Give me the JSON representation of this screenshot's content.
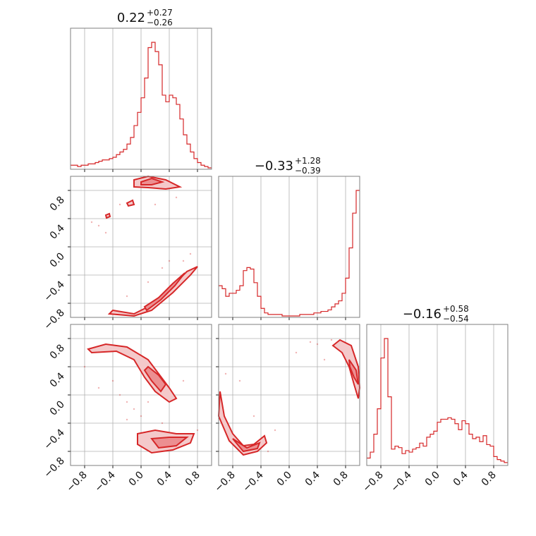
{
  "chart_data": {
    "type": "scatter",
    "subtype": "corner-plot",
    "accent_color": "#d62728",
    "fill_light": "#f4c9ca",
    "fill_mid": "#ec8f91",
    "params": [
      "",
      "",
      ""
    ],
    "range": [
      -1.0,
      1.0
    ],
    "ticks": [
      -0.8,
      -0.4,
      0.0,
      0.4,
      0.8
    ],
    "tick_labels": [
      "−0.8",
      "−0.4",
      "0.0",
      "0.4",
      "0.8"
    ],
    "grid": true,
    "titles": [
      {
        "median": "0.22",
        "plus": "+0.27",
        "minus": "−0.26"
      },
      {
        "median": "−0.33",
        "plus": "+1.28",
        "minus": "−0.39"
      },
      {
        "median": "−0.16",
        "plus": "+0.58",
        "minus": "−0.54"
      }
    ],
    "histograms": [
      {
        "param": 0,
        "bins": [
          -1.0,
          -0.95,
          -0.9,
          -0.85,
          -0.8,
          -0.75,
          -0.7,
          -0.65,
          -0.6,
          -0.55,
          -0.5,
          -0.45,
          -0.4,
          -0.35,
          -0.3,
          -0.25,
          -0.2,
          -0.15,
          -0.1,
          -0.05,
          0.0,
          0.05,
          0.1,
          0.15,
          0.2,
          0.25,
          0.3,
          0.35,
          0.4,
          0.45,
          0.5,
          0.55,
          0.6,
          0.65,
          0.7,
          0.75,
          0.8,
          0.85,
          0.9,
          0.95,
          1.0
        ],
        "counts": [
          0.02,
          0.02,
          0.01,
          0.02,
          0.02,
          0.03,
          0.03,
          0.04,
          0.05,
          0.06,
          0.06,
          0.07,
          0.08,
          0.1,
          0.12,
          0.14,
          0.18,
          0.23,
          0.32,
          0.42,
          0.53,
          0.68,
          0.91,
          0.95,
          0.88,
          0.78,
          0.55,
          0.5,
          0.55,
          0.53,
          0.48,
          0.37,
          0.25,
          0.18,
          0.12,
          0.07,
          0.04,
          0.02,
          0.01,
          0.0
        ]
      },
      {
        "param": 1,
        "bins": [
          -1.0,
          -0.95,
          -0.9,
          -0.85,
          -0.8,
          -0.75,
          -0.7,
          -0.65,
          -0.6,
          -0.55,
          -0.5,
          -0.45,
          -0.4,
          -0.35,
          -0.3,
          -0.25,
          -0.2,
          -0.15,
          -0.1,
          -0.05,
          0.0,
          0.05,
          0.1,
          0.15,
          0.2,
          0.25,
          0.3,
          0.35,
          0.4,
          0.45,
          0.5,
          0.55,
          0.6,
          0.65,
          0.7,
          0.75,
          0.8,
          0.85,
          0.9,
          0.95,
          1.0
        ],
        "counts": [
          0.2,
          0.18,
          0.13,
          0.15,
          0.15,
          0.17,
          0.2,
          0.3,
          0.32,
          0.31,
          0.22,
          0.13,
          0.05,
          0.02,
          0.01,
          0.01,
          0.01,
          0.01,
          0.0,
          0.0,
          0.0,
          0.0,
          0.0,
          0.01,
          0.01,
          0.01,
          0.01,
          0.02,
          0.02,
          0.03,
          0.03,
          0.04,
          0.06,
          0.08,
          0.1,
          0.15,
          0.25,
          0.45,
          0.68,
          0.83
        ]
      },
      {
        "param": 2,
        "bins": [
          -1.0,
          -0.95,
          -0.9,
          -0.85,
          -0.8,
          -0.75,
          -0.7,
          -0.65,
          -0.6,
          -0.55,
          -0.5,
          -0.45,
          -0.4,
          -0.35,
          -0.3,
          -0.25,
          -0.2,
          -0.15,
          -0.1,
          -0.05,
          0.0,
          0.05,
          0.1,
          0.15,
          0.2,
          0.25,
          0.3,
          0.35,
          0.4,
          0.45,
          0.5,
          0.55,
          0.6,
          0.65,
          0.7,
          0.75,
          0.8,
          0.85,
          0.9,
          0.95,
          1.0
        ],
        "counts": [
          0.04,
          0.08,
          0.2,
          0.37,
          0.71,
          0.84,
          0.45,
          0.1,
          0.12,
          0.11,
          0.07,
          0.09,
          0.08,
          0.1,
          0.11,
          0.14,
          0.12,
          0.18,
          0.2,
          0.22,
          0.28,
          0.3,
          0.3,
          0.31,
          0.3,
          0.27,
          0.23,
          0.29,
          0.27,
          0.2,
          0.17,
          0.18,
          0.15,
          0.19,
          0.13,
          0.12,
          0.05,
          0.03,
          0.02,
          0.01
        ]
      }
    ],
    "contours_2d": [
      {
        "x_param": 0,
        "y_param": 1,
        "regions": [
          {
            "level": "outer",
            "points": [
              [
                -0.1,
                0.95
              ],
              [
                0.1,
                1.0
              ],
              [
                0.35,
                0.95
              ],
              [
                0.55,
                0.85
              ],
              [
                0.35,
                0.82
              ],
              [
                0.1,
                0.84
              ],
              [
                -0.1,
                0.85
              ]
            ]
          },
          {
            "level": "inner",
            "points": [
              [
                0.0,
                0.92
              ],
              [
                0.15,
                0.97
              ],
              [
                0.3,
                0.92
              ],
              [
                0.15,
                0.88
              ],
              [
                0.0,
                0.88
              ]
            ]
          },
          {
            "level": "outer",
            "points": [
              [
                -0.4,
                -0.9
              ],
              [
                -0.1,
                -0.95
              ],
              [
                0.2,
                -0.8
              ],
              [
                0.45,
                -0.55
              ],
              [
                0.65,
                -0.35
              ],
              [
                0.8,
                -0.28
              ],
              [
                0.7,
                -0.4
              ],
              [
                0.45,
                -0.65
              ],
              [
                0.15,
                -0.9
              ],
              [
                -0.1,
                -0.98
              ],
              [
                -0.45,
                -0.95
              ]
            ]
          },
          {
            "level": "inner",
            "points": [
              [
                0.05,
                -0.85
              ],
              [
                0.25,
                -0.72
              ],
              [
                0.45,
                -0.52
              ],
              [
                0.62,
                -0.37
              ],
              [
                0.48,
                -0.55
              ],
              [
                0.28,
                -0.75
              ],
              [
                0.08,
                -0.9
              ]
            ]
          },
          {
            "level": "outer",
            "points": [
              [
                -0.5,
                0.45
              ],
              [
                -0.45,
                0.47
              ],
              [
                -0.44,
                0.43
              ],
              [
                -0.49,
                0.41
              ]
            ]
          },
          {
            "level": "outer",
            "points": [
              [
                -0.2,
                0.62
              ],
              [
                -0.12,
                0.66
              ],
              [
                -0.1,
                0.6
              ],
              [
                -0.18,
                0.58
              ]
            ]
          }
        ],
        "scatter": [
          [
            -0.6,
            0.3
          ],
          [
            -0.7,
            0.35
          ],
          [
            -0.3,
            0.6
          ],
          [
            0.5,
            0.7
          ],
          [
            0.6,
            -0.2
          ],
          [
            0.3,
            -0.3
          ],
          [
            -0.2,
            -0.7
          ],
          [
            0.7,
            -0.1
          ],
          [
            0.2,
            0.6
          ],
          [
            -0.5,
            0.2
          ],
          [
            0.1,
            -0.5
          ],
          [
            0.4,
            -0.2
          ]
        ]
      },
      {
        "x_param": 0,
        "y_param": 2,
        "regions": [
          {
            "level": "outer",
            "points": [
              [
                -0.75,
                0.65
              ],
              [
                -0.5,
                0.72
              ],
              [
                -0.2,
                0.68
              ],
              [
                0.1,
                0.5
              ],
              [
                0.25,
                0.3
              ],
              [
                0.4,
                0.1
              ],
              [
                0.5,
                -0.05
              ],
              [
                0.4,
                -0.1
              ],
              [
                0.2,
                0.05
              ],
              [
                0.05,
                0.25
              ],
              [
                -0.1,
                0.5
              ],
              [
                -0.35,
                0.62
              ],
              [
                -0.7,
                0.6
              ]
            ]
          },
          {
            "level": "inner",
            "points": [
              [
                0.1,
                0.4
              ],
              [
                0.25,
                0.28
              ],
              [
                0.35,
                0.15
              ],
              [
                0.28,
                0.05
              ],
              [
                0.15,
                0.2
              ],
              [
                0.05,
                0.35
              ]
            ]
          },
          {
            "level": "outer",
            "points": [
              [
                -0.05,
                -0.55
              ],
              [
                0.2,
                -0.5
              ],
              [
                0.5,
                -0.55
              ],
              [
                0.75,
                -0.55
              ],
              [
                0.7,
                -0.68
              ],
              [
                0.45,
                -0.78
              ],
              [
                0.15,
                -0.82
              ],
              [
                -0.05,
                -0.7
              ]
            ]
          },
          {
            "level": "inner",
            "points": [
              [
                0.15,
                -0.62
              ],
              [
                0.4,
                -0.6
              ],
              [
                0.65,
                -0.6
              ],
              [
                0.5,
                -0.72
              ],
              [
                0.25,
                -0.75
              ]
            ]
          }
        ],
        "scatter": [
          [
            -0.3,
            0.0
          ],
          [
            -0.2,
            -0.1
          ],
          [
            -0.1,
            -0.2
          ],
          [
            -0.2,
            -0.35
          ],
          [
            0.0,
            -0.3
          ],
          [
            0.1,
            -0.1
          ],
          [
            -0.4,
            0.2
          ],
          [
            0.6,
            0.2
          ],
          [
            -0.6,
            0.1
          ],
          [
            0.3,
            -0.4
          ],
          [
            0.8,
            -0.5
          ],
          [
            -0.8,
            0.4
          ]
        ]
      },
      {
        "x_param": 1,
        "y_param": 2,
        "regions": [
          {
            "level": "outer",
            "points": [
              [
                0.62,
                0.7
              ],
              [
                0.72,
                0.78
              ],
              [
                0.88,
                0.7
              ],
              [
                0.98,
                0.4
              ],
              [
                1.0,
                0.1
              ],
              [
                0.98,
                -0.05
              ],
              [
                0.92,
                0.15
              ],
              [
                0.85,
                0.4
              ],
              [
                0.75,
                0.6
              ]
            ]
          },
          {
            "level": "inner",
            "points": [
              [
                0.85,
                0.5
              ],
              [
                0.95,
                0.35
              ],
              [
                0.98,
                0.15
              ],
              [
                0.92,
                0.25
              ],
              [
                0.86,
                0.4
              ]
            ]
          },
          {
            "level": "outer",
            "points": [
              [
                -0.98,
                0.05
              ],
              [
                -0.92,
                -0.3
              ],
              [
                -0.8,
                -0.55
              ],
              [
                -0.65,
                -0.72
              ],
              [
                -0.5,
                -0.7
              ],
              [
                -0.35,
                -0.58
              ],
              [
                -0.32,
                -0.68
              ],
              [
                -0.45,
                -0.8
              ],
              [
                -0.65,
                -0.85
              ],
              [
                -0.85,
                -0.65
              ],
              [
                -1.0,
                -0.3
              ]
            ]
          },
          {
            "level": "inner",
            "points": [
              [
                -0.8,
                -0.62
              ],
              [
                -0.6,
                -0.75
              ],
              [
                -0.42,
                -0.68
              ],
              [
                -0.45,
                -0.76
              ],
              [
                -0.65,
                -0.8
              ]
            ]
          }
        ],
        "scatter": [
          [
            0.3,
            0.75
          ],
          [
            0.4,
            0.72
          ],
          [
            0.6,
            0.78
          ],
          [
            -0.2,
            -0.5
          ],
          [
            -0.7,
            0.2
          ],
          [
            0.1,
            0.6
          ],
          [
            -0.5,
            -0.3
          ],
          [
            0.5,
            0.5
          ],
          [
            -0.3,
            -0.8
          ],
          [
            -0.9,
            0.3
          ]
        ]
      }
    ]
  }
}
